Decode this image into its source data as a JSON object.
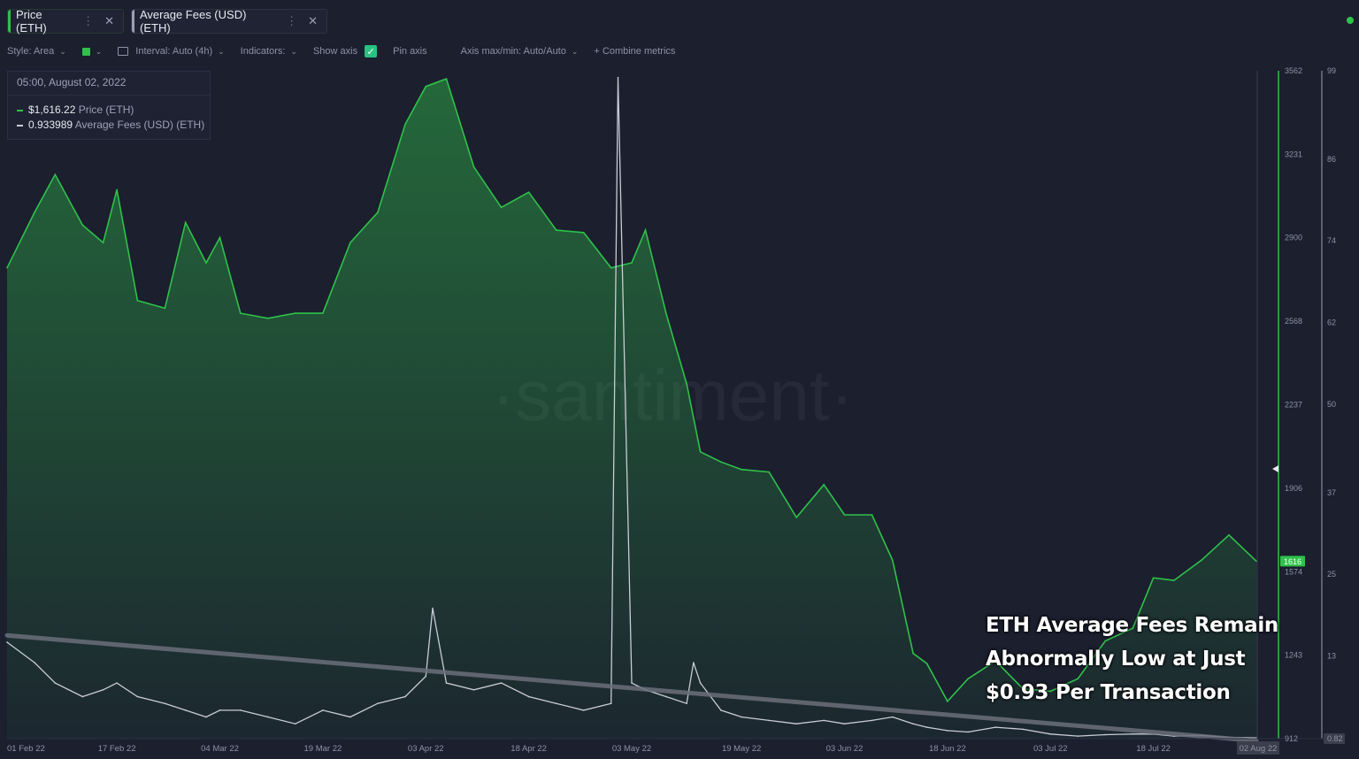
{
  "tabs": [
    {
      "label": "Price (ETH)",
      "color": "#2fc24a"
    },
    {
      "label": "Average Fees (USD) (ETH)",
      "color": "#9aa0b2"
    }
  ],
  "toolbar": {
    "style": "Style: Area",
    "interval": "Interval: Auto (4h)",
    "indicators": "Indicators:",
    "show_axis": "Show axis",
    "pin_axis": "Pin axis",
    "axis_maxmin": "Axis max/min: Auto/Auto",
    "combine": "+ Combine metrics"
  },
  "legend": {
    "date": "05:00, August 02, 2022",
    "price_value": "$1,616.22",
    "price_name": "Price (ETH)",
    "fees_value": "0.933989",
    "fees_name": "Average Fees (USD) (ETH)"
  },
  "watermark": "·santiment·",
  "caption": [
    "ETH Average Fees Remain",
    "Abnormally Low at Just",
    "$0.93 Per Transaction"
  ],
  "chart_data": {
    "type": "area",
    "x_tick_labels": [
      "01 Feb 22",
      "17 Feb 22",
      "04 Mar 22",
      "19 Mar 22",
      "03 Apr 22",
      "18 Apr 22",
      "03 May 22",
      "19 May 22",
      "03 Jun 22",
      "18 Jun 22",
      "03 Jul 22",
      "18 Jul 22",
      "02 Aug 22"
    ],
    "price_axis": {
      "ticks": [
        "3562",
        "3231",
        "2900",
        "2568",
        "2237",
        "1906",
        "1574",
        "1243",
        "912"
      ],
      "min": 912,
      "max": 3562,
      "current_label": "1616"
    },
    "fees_axis": {
      "ticks": [
        "99",
        "86",
        "74",
        "62",
        "50",
        "37",
        "25",
        "13",
        "0.82"
      ],
      "min": 0.82,
      "max": 99
    },
    "series": [
      {
        "name": "Price (ETH)",
        "color": "#2fc24a",
        "x": [
          "01 Feb",
          "05 Feb",
          "08 Feb",
          "12 Feb",
          "15 Feb",
          "17 Feb",
          "20 Feb",
          "24 Feb",
          "27 Feb",
          "02 Mar",
          "04 Mar",
          "07 Mar",
          "11 Mar",
          "15 Mar",
          "19 Mar",
          "23 Mar",
          "27 Mar",
          "31 Mar",
          "03 Apr",
          "06 Apr",
          "10 Apr",
          "14 Apr",
          "18 Apr",
          "22 Apr",
          "26 Apr",
          "30 Apr",
          "03 May",
          "05 May",
          "08 May",
          "11 May",
          "13 May",
          "16 May",
          "19 May",
          "23 May",
          "27 May",
          "31 May",
          "03 Jun",
          "07 Jun",
          "10 Jun",
          "13 Jun",
          "15 Jun",
          "18 Jun",
          "21 Jun",
          "25 Jun",
          "29 Jun",
          "03 Jul",
          "07 Jul",
          "11 Jul",
          "15 Jul",
          "18 Jul",
          "21 Jul",
          "25 Jul",
          "29 Jul",
          "02 Aug"
        ],
        "y": [
          2780,
          3000,
          3150,
          2950,
          2880,
          3090,
          2650,
          2620,
          2960,
          2800,
          2900,
          2600,
          2580,
          2600,
          2600,
          2880,
          3000,
          3350,
          3500,
          3530,
          3180,
          3020,
          3080,
          2930,
          2920,
          2780,
          2800,
          2930,
          2600,
          2320,
          2050,
          2010,
          1980,
          1970,
          1790,
          1920,
          1800,
          1800,
          1620,
          1250,
          1210,
          1060,
          1150,
          1220,
          1110,
          1100,
          1150,
          1300,
          1350,
          1550,
          1540,
          1620,
          1720,
          1616
        ]
      },
      {
        "name": "Average Fees (USD) (ETH)",
        "color": "#c9ccd4",
        "x": [
          "01 Feb",
          "05 Feb",
          "08 Feb",
          "12 Feb",
          "15 Feb",
          "17 Feb",
          "20 Feb",
          "24 Feb",
          "27 Feb",
          "02 Mar",
          "04 Mar",
          "07 Mar",
          "11 Mar",
          "15 Mar",
          "19 Mar",
          "23 Mar",
          "27 Mar",
          "31 Mar",
          "03 Apr",
          "04 Apr",
          "06 Apr",
          "10 Apr",
          "14 Apr",
          "18 Apr",
          "22 Apr",
          "26 Apr",
          "30 Apr",
          "01 May",
          "03 May",
          "05 May",
          "08 May",
          "11 May",
          "12 May",
          "13 May",
          "16 May",
          "19 May",
          "23 May",
          "27 May",
          "31 May",
          "03 Jun",
          "07 Jun",
          "10 Jun",
          "13 Jun",
          "15 Jun",
          "18 Jun",
          "21 Jun",
          "25 Jun",
          "29 Jun",
          "03 Jul",
          "07 Jul",
          "11 Jul",
          "15 Jul",
          "18 Jul",
          "21 Jul",
          "25 Jul",
          "29 Jul",
          "02 Aug"
        ],
        "y": [
          15,
          12,
          9,
          7,
          8,
          9,
          7,
          6,
          5,
          4,
          5,
          5,
          4,
          3,
          5,
          4,
          6,
          7,
          10,
          20,
          9,
          8,
          9,
          7,
          6,
          5,
          6,
          98,
          9,
          8,
          7,
          6,
          12,
          9,
          5,
          4,
          3.5,
          3,
          3.5,
          3,
          3.5,
          4,
          3,
          2.5,
          2,
          1.8,
          2.5,
          2.2,
          1.5,
          1.2,
          1.4,
          1.5,
          1.5,
          1.2,
          1.3,
          1.0,
          0.93
        ]
      }
    ],
    "trendline": {
      "from": {
        "x": "01 Feb",
        "y": 16
      },
      "to": {
        "x": "02 Aug",
        "y": 0.5
      },
      "axis": "fees"
    },
    "grid": false,
    "legend_position": "top-left"
  }
}
